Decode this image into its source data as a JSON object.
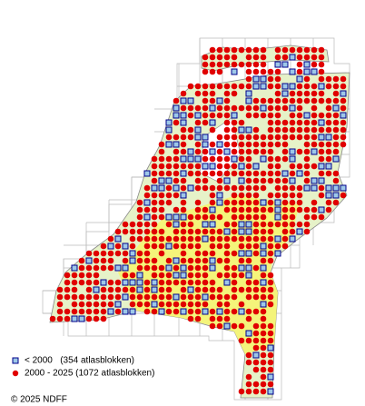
{
  "legend": [
    {
      "label": "< 2000   (354 atlasblokken)"
    },
    {
      "label": "2000 - 2025 (1072 atlasblokken)"
    }
  ],
  "copyright": "© 2025 NDFF"
}
